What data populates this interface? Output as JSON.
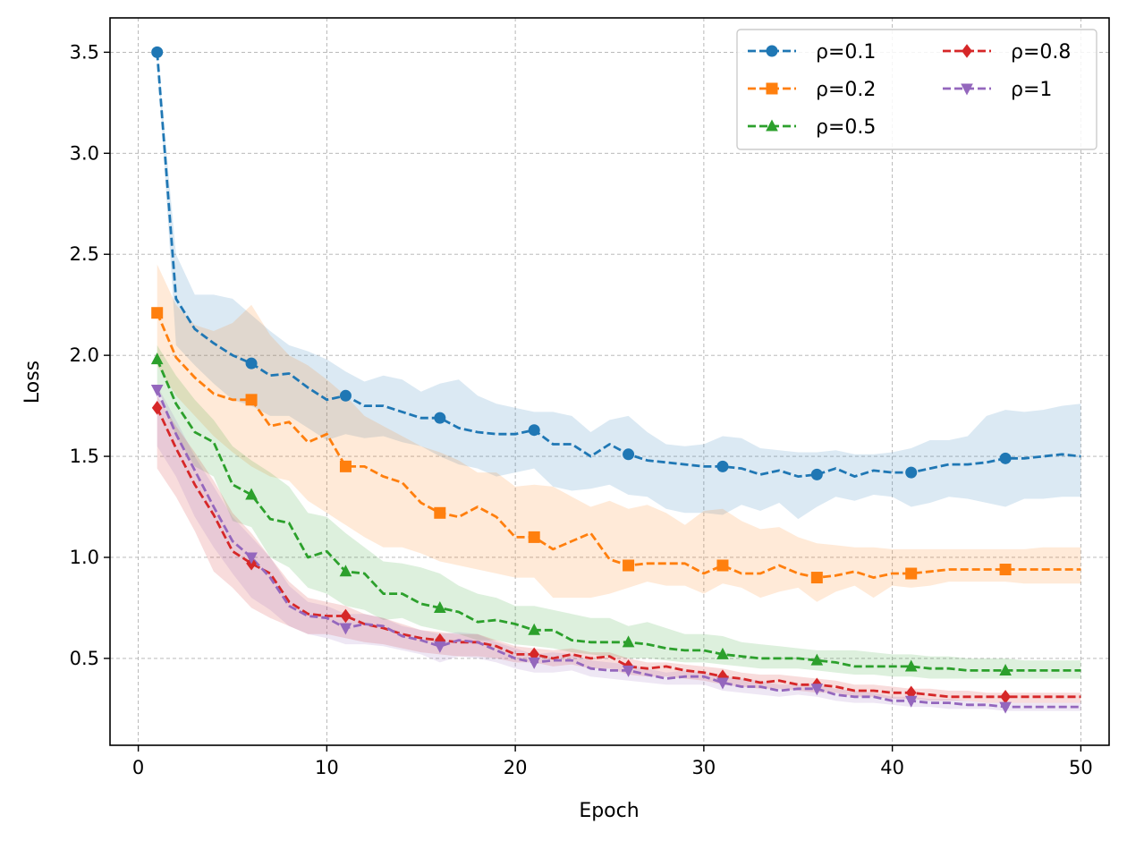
{
  "chart_data": {
    "type": "line",
    "title": "",
    "xlabel": "Epoch",
    "ylabel": "Loss",
    "xlim": [
      -1.5,
      51.5
    ],
    "ylim": [
      0.07,
      3.67
    ],
    "xticks": [
      0,
      10,
      20,
      30,
      40,
      50
    ],
    "yticks": [
      0.5,
      1.0,
      1.5,
      2.0,
      2.5,
      3.0,
      3.5
    ],
    "ytick_labels": [
      "0.5",
      "1.0",
      "1.5",
      "2.0",
      "2.5",
      "3.0",
      "3.5"
    ],
    "grid": true,
    "line_style": "dashed",
    "shaded_band": true,
    "marker_every": 5,
    "legend": {
      "position": "top-right",
      "columns": 2
    },
    "x": [
      1,
      2,
      3,
      4,
      5,
      6,
      7,
      8,
      9,
      10,
      11,
      12,
      13,
      14,
      15,
      16,
      17,
      18,
      19,
      20,
      21,
      22,
      23,
      24,
      25,
      26,
      27,
      28,
      29,
      30,
      31,
      32,
      33,
      34,
      35,
      36,
      37,
      38,
      39,
      40,
      41,
      42,
      43,
      44,
      45,
      46,
      47,
      48,
      49,
      50
    ],
    "series": [
      {
        "name": "ρ=0.1",
        "color": "#1f77b4",
        "marker": "circle",
        "values": [
          3.5,
          2.28,
          2.13,
          2.06,
          2.0,
          1.96,
          1.9,
          1.91,
          1.84,
          1.78,
          1.8,
          1.75,
          1.75,
          1.72,
          1.69,
          1.69,
          1.64,
          1.62,
          1.61,
          1.61,
          1.63,
          1.56,
          1.56,
          1.5,
          1.56,
          1.51,
          1.48,
          1.47,
          1.46,
          1.45,
          1.45,
          1.44,
          1.41,
          1.43,
          1.4,
          1.41,
          1.44,
          1.4,
          1.43,
          1.42,
          1.42,
          1.44,
          1.46,
          1.46,
          1.47,
          1.49,
          1.49,
          1.5,
          1.51,
          1.5
        ],
        "upper": [
          3.5,
          2.5,
          2.3,
          2.3,
          2.28,
          2.2,
          2.12,
          2.05,
          2.02,
          1.98,
          1.92,
          1.87,
          1.9,
          1.88,
          1.82,
          1.86,
          1.88,
          1.8,
          1.76,
          1.74,
          1.72,
          1.72,
          1.7,
          1.62,
          1.68,
          1.7,
          1.62,
          1.56,
          1.55,
          1.56,
          1.6,
          1.59,
          1.54,
          1.53,
          1.52,
          1.52,
          1.53,
          1.51,
          1.51,
          1.52,
          1.54,
          1.58,
          1.58,
          1.6,
          1.7,
          1.73,
          1.72,
          1.73,
          1.75,
          1.76
        ],
        "lower": [
          3.5,
          2.05,
          1.95,
          1.86,
          1.78,
          1.75,
          1.7,
          1.7,
          1.64,
          1.58,
          1.61,
          1.59,
          1.6,
          1.57,
          1.55,
          1.5,
          1.46,
          1.44,
          1.4,
          1.42,
          1.44,
          1.35,
          1.33,
          1.34,
          1.36,
          1.31,
          1.3,
          1.24,
          1.22,
          1.22,
          1.21,
          1.26,
          1.23,
          1.27,
          1.19,
          1.25,
          1.3,
          1.28,
          1.31,
          1.3,
          1.25,
          1.27,
          1.3,
          1.29,
          1.27,
          1.25,
          1.29,
          1.29,
          1.3,
          1.3
        ]
      },
      {
        "name": "ρ=0.2",
        "color": "#ff7f0e",
        "marker": "square",
        "values": [
          2.21,
          1.99,
          1.89,
          1.81,
          1.78,
          1.78,
          1.65,
          1.67,
          1.57,
          1.61,
          1.45,
          1.45,
          1.4,
          1.37,
          1.27,
          1.22,
          1.2,
          1.25,
          1.2,
          1.1,
          1.1,
          1.04,
          1.08,
          1.12,
          0.99,
          0.96,
          0.97,
          0.97,
          0.97,
          0.92,
          0.96,
          0.92,
          0.92,
          0.96,
          0.92,
          0.9,
          0.91,
          0.93,
          0.9,
          0.92,
          0.92,
          0.93,
          0.94,
          0.94,
          0.94,
          0.94,
          0.94,
          0.94,
          0.94,
          0.94
        ],
        "upper": [
          2.45,
          2.25,
          2.15,
          2.12,
          2.16,
          2.25,
          2.1,
          2.0,
          1.95,
          1.88,
          1.8,
          1.7,
          1.65,
          1.6,
          1.55,
          1.52,
          1.48,
          1.42,
          1.42,
          1.35,
          1.36,
          1.35,
          1.3,
          1.25,
          1.28,
          1.24,
          1.26,
          1.22,
          1.16,
          1.23,
          1.24,
          1.18,
          1.14,
          1.15,
          1.1,
          1.07,
          1.06,
          1.05,
          1.05,
          1.04,
          1.04,
          1.04,
          1.04,
          1.04,
          1.04,
          1.04,
          1.04,
          1.05,
          1.05,
          1.05
        ],
        "lower": [
          1.95,
          1.8,
          1.7,
          1.6,
          1.52,
          1.45,
          1.4,
          1.38,
          1.28,
          1.22,
          1.16,
          1.1,
          1.05,
          1.05,
          1.02,
          0.98,
          0.96,
          0.94,
          0.92,
          0.9,
          0.9,
          0.8,
          0.8,
          0.8,
          0.82,
          0.85,
          0.88,
          0.86,
          0.86,
          0.82,
          0.87,
          0.85,
          0.8,
          0.83,
          0.85,
          0.78,
          0.83,
          0.86,
          0.8,
          0.86,
          0.85,
          0.86,
          0.88,
          0.88,
          0.88,
          0.88,
          0.87,
          0.87,
          0.87,
          0.87
        ]
      },
      {
        "name": "ρ=0.5",
        "color": "#2ca02c",
        "marker": "triangle-up",
        "values": [
          1.98,
          1.76,
          1.62,
          1.57,
          1.36,
          1.31,
          1.19,
          1.17,
          1.0,
          1.03,
          0.93,
          0.92,
          0.82,
          0.82,
          0.77,
          0.75,
          0.73,
          0.68,
          0.69,
          0.67,
          0.64,
          0.64,
          0.59,
          0.58,
          0.58,
          0.58,
          0.57,
          0.55,
          0.54,
          0.54,
          0.52,
          0.51,
          0.5,
          0.5,
          0.5,
          0.49,
          0.48,
          0.46,
          0.46,
          0.46,
          0.46,
          0.45,
          0.45,
          0.44,
          0.44,
          0.44,
          0.44,
          0.44,
          0.44,
          0.44
        ],
        "upper": [
          2.05,
          1.9,
          1.78,
          1.68,
          1.55,
          1.48,
          1.42,
          1.35,
          1.22,
          1.2,
          1.12,
          1.05,
          0.98,
          0.97,
          0.95,
          0.92,
          0.86,
          0.82,
          0.8,
          0.76,
          0.76,
          0.74,
          0.72,
          0.7,
          0.7,
          0.66,
          0.68,
          0.65,
          0.62,
          0.62,
          0.61,
          0.58,
          0.57,
          0.56,
          0.55,
          0.54,
          0.54,
          0.54,
          0.53,
          0.52,
          0.52,
          0.51,
          0.51,
          0.5,
          0.5,
          0.5,
          0.49,
          0.49,
          0.49,
          0.49
        ],
        "lower": [
          1.85,
          1.6,
          1.45,
          1.4,
          1.18,
          1.15,
          1.0,
          0.95,
          0.85,
          0.82,
          0.76,
          0.74,
          0.69,
          0.7,
          0.66,
          0.64,
          0.62,
          0.59,
          0.59,
          0.57,
          0.56,
          0.55,
          0.53,
          0.52,
          0.51,
          0.5,
          0.5,
          0.49,
          0.48,
          0.48,
          0.47,
          0.46,
          0.45,
          0.45,
          0.45,
          0.44,
          0.43,
          0.42,
          0.42,
          0.41,
          0.41,
          0.4,
          0.4,
          0.4,
          0.4,
          0.4,
          0.4,
          0.4,
          0.4,
          0.4
        ]
      },
      {
        "name": "ρ=0.8",
        "color": "#d62728",
        "marker": "diamond",
        "values": [
          1.74,
          1.54,
          1.36,
          1.21,
          1.03,
          0.97,
          0.92,
          0.78,
          0.72,
          0.71,
          0.71,
          0.67,
          0.65,
          0.62,
          0.6,
          0.59,
          0.58,
          0.58,
          0.56,
          0.52,
          0.52,
          0.5,
          0.52,
          0.5,
          0.51,
          0.46,
          0.45,
          0.46,
          0.44,
          0.43,
          0.41,
          0.4,
          0.38,
          0.39,
          0.37,
          0.37,
          0.36,
          0.34,
          0.34,
          0.33,
          0.33,
          0.32,
          0.31,
          0.31,
          0.31,
          0.31,
          0.31,
          0.31,
          0.31,
          0.31
        ],
        "upper": [
          1.8,
          1.65,
          1.52,
          1.38,
          1.22,
          1.12,
          1.0,
          0.88,
          0.8,
          0.78,
          0.76,
          0.72,
          0.7,
          0.67,
          0.64,
          0.63,
          0.62,
          0.62,
          0.59,
          0.56,
          0.55,
          0.54,
          0.55,
          0.53,
          0.53,
          0.5,
          0.48,
          0.48,
          0.47,
          0.46,
          0.45,
          0.43,
          0.42,
          0.42,
          0.41,
          0.4,
          0.39,
          0.37,
          0.37,
          0.36,
          0.35,
          0.35,
          0.34,
          0.34,
          0.33,
          0.33,
          0.33,
          0.33,
          0.33,
          0.33
        ],
        "lower": [
          1.44,
          1.3,
          1.13,
          0.93,
          0.85,
          0.75,
          0.7,
          0.66,
          0.62,
          0.62,
          0.6,
          0.58,
          0.57,
          0.55,
          0.53,
          0.52,
          0.51,
          0.51,
          0.5,
          0.48,
          0.48,
          0.46,
          0.47,
          0.45,
          0.45,
          0.42,
          0.41,
          0.41,
          0.4,
          0.39,
          0.37,
          0.36,
          0.35,
          0.35,
          0.34,
          0.33,
          0.33,
          0.31,
          0.31,
          0.3,
          0.3,
          0.29,
          0.29,
          0.29,
          0.28,
          0.28,
          0.28,
          0.28,
          0.28,
          0.28
        ]
      },
      {
        "name": "ρ=1",
        "color": "#9467bd",
        "marker": "triangle-down",
        "values": [
          1.83,
          1.61,
          1.43,
          1.25,
          1.08,
          1.0,
          0.9,
          0.76,
          0.71,
          0.7,
          0.65,
          0.67,
          0.66,
          0.61,
          0.59,
          0.56,
          0.59,
          0.58,
          0.54,
          0.5,
          0.48,
          0.49,
          0.49,
          0.45,
          0.44,
          0.44,
          0.42,
          0.4,
          0.41,
          0.41,
          0.38,
          0.36,
          0.36,
          0.34,
          0.35,
          0.35,
          0.32,
          0.31,
          0.31,
          0.29,
          0.29,
          0.28,
          0.28,
          0.27,
          0.27,
          0.26,
          0.26,
          0.26,
          0.26,
          0.26
        ],
        "upper": [
          1.85,
          1.68,
          1.5,
          1.35,
          1.2,
          1.1,
          1.0,
          0.86,
          0.78,
          0.76,
          0.72,
          0.72,
          0.7,
          0.66,
          0.64,
          0.62,
          0.63,
          0.62,
          0.58,
          0.55,
          0.52,
          0.53,
          0.52,
          0.49,
          0.48,
          0.47,
          0.45,
          0.43,
          0.44,
          0.43,
          0.41,
          0.4,
          0.39,
          0.37,
          0.37,
          0.37,
          0.35,
          0.34,
          0.33,
          0.31,
          0.31,
          0.3,
          0.3,
          0.29,
          0.28,
          0.28,
          0.28,
          0.28,
          0.28,
          0.28
        ],
        "lower": [
          1.55,
          1.4,
          1.2,
          1.05,
          0.92,
          0.8,
          0.74,
          0.66,
          0.62,
          0.6,
          0.57,
          0.57,
          0.56,
          0.54,
          0.52,
          0.48,
          0.51,
          0.5,
          0.48,
          0.45,
          0.43,
          0.43,
          0.44,
          0.41,
          0.4,
          0.39,
          0.38,
          0.37,
          0.37,
          0.37,
          0.34,
          0.33,
          0.32,
          0.31,
          0.32,
          0.31,
          0.29,
          0.28,
          0.28,
          0.27,
          0.26,
          0.26,
          0.25,
          0.25,
          0.25,
          0.24,
          0.24,
          0.24,
          0.24,
          0.24
        ]
      }
    ]
  }
}
